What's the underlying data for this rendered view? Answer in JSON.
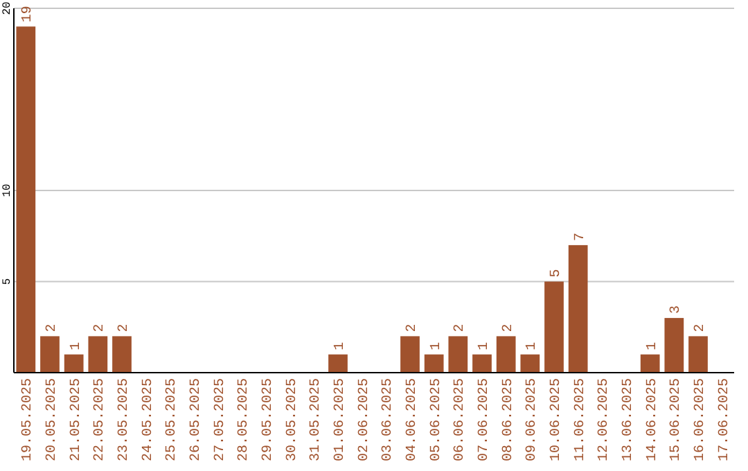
{
  "chart_data": {
    "type": "bar",
    "categories": [
      "19.05.2025",
      "20.05.2025",
      "21.05.2025",
      "22.05.2025",
      "23.05.2025",
      "24.05.2025",
      "25.05.2025",
      "26.05.2025",
      "27.05.2025",
      "28.05.2025",
      "29.05.2025",
      "30.05.2025",
      "31.05.2025",
      "01.06.2025",
      "02.06.2025",
      "03.06.2025",
      "04.06.2025",
      "05.06.2025",
      "06.06.2025",
      "07.06.2025",
      "08.06.2025",
      "09.06.2025",
      "10.06.2025",
      "11.06.2025",
      "12.06.2025",
      "13.06.2025",
      "14.06.2025",
      "15.06.2025",
      "16.06.2025",
      "17.06.2025"
    ],
    "values": [
      19,
      2,
      1,
      2,
      2,
      0,
      0,
      0,
      0,
      0,
      0,
      0,
      0,
      1,
      0,
      0,
      2,
      1,
      2,
      1,
      2,
      1,
      5,
      7,
      0,
      0,
      1,
      3,
      2,
      0
    ],
    "value_labels": [
      "19",
      "2",
      "1",
      "2",
      "2",
      null,
      null,
      null,
      null,
      null,
      null,
      null,
      null,
      "1",
      null,
      null,
      "2",
      "1",
      "2",
      "1",
      "2",
      "1",
      "5",
      "7",
      null,
      null,
      "1",
      "3",
      "2",
      null
    ],
    "color": "#a0522d",
    "ylim": [
      0,
      20
    ],
    "yticks": [
      5,
      10,
      20
    ],
    "grid": "y"
  }
}
